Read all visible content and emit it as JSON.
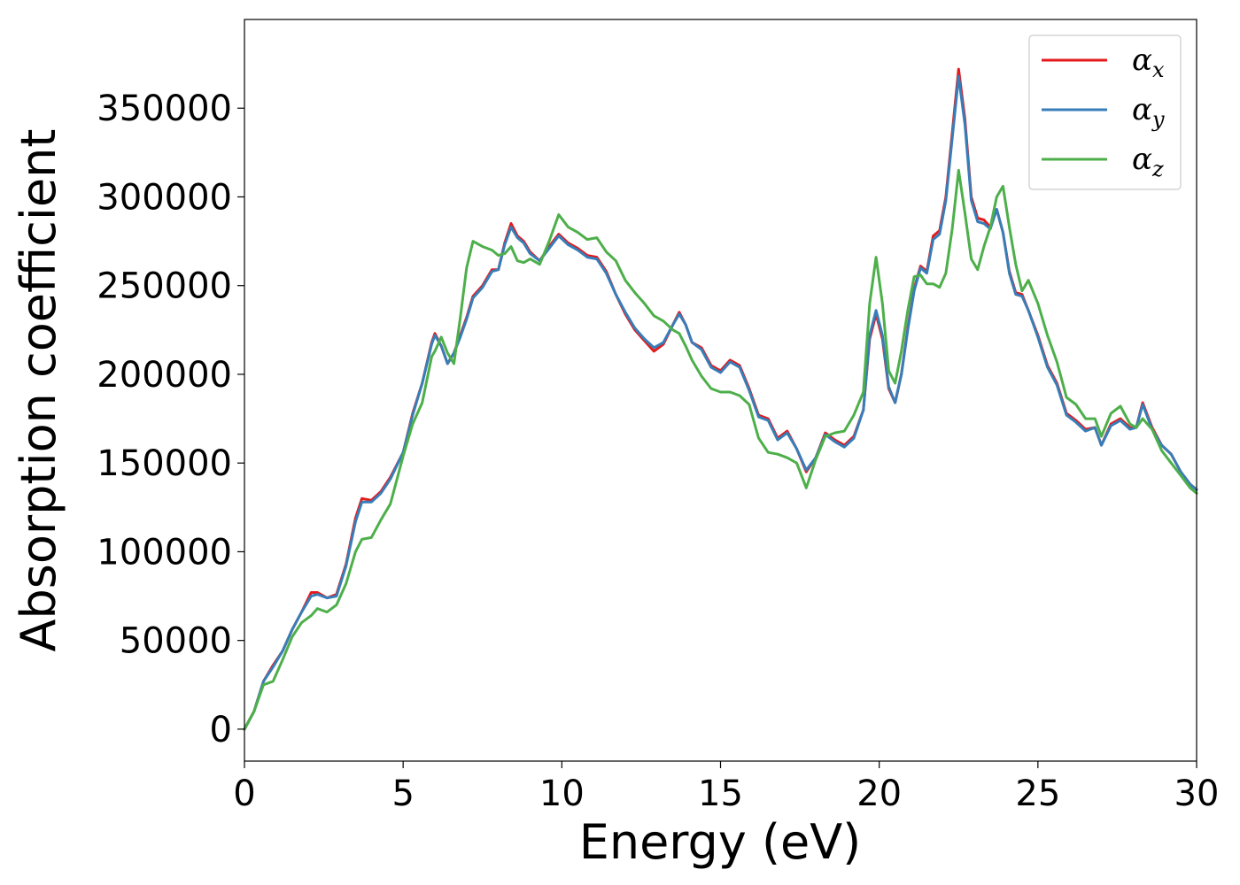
{
  "chart_data": {
    "type": "line",
    "xlabel": "Energy (eV)",
    "ylabel": "Absorption coefficient",
    "xlim": [
      0,
      30
    ],
    "ylim": [
      -18000,
      400000
    ],
    "xticks": [
      0,
      5,
      10,
      15,
      20,
      25,
      30
    ],
    "xtick_labels": [
      "0",
      "5",
      "10",
      "15",
      "20",
      "25",
      "30"
    ],
    "yticks": [
      0,
      50000,
      100000,
      150000,
      200000,
      250000,
      300000,
      350000
    ],
    "ytick_labels": [
      "0",
      "50000",
      "100000",
      "150000",
      "200000",
      "250000",
      "300000",
      "350000"
    ],
    "grid": false,
    "legend_position": "top-right",
    "series": [
      {
        "name": "α_x",
        "legend_base": "α",
        "legend_sub": "x",
        "color": "#e41a1c",
        "x": [
          0,
          0.3,
          0.6,
          0.9,
          1.2,
          1.5,
          1.8,
          2.1,
          2.3,
          2.6,
          2.9,
          3.2,
          3.5,
          3.7,
          4.0,
          4.3,
          4.6,
          5.0,
          5.3,
          5.6,
          5.9,
          6.0,
          6.2,
          6.4,
          6.6,
          6.8,
          7.0,
          7.2,
          7.5,
          7.8,
          8.0,
          8.2,
          8.4,
          8.6,
          8.8,
          9.0,
          9.3,
          9.6,
          9.9,
          10.2,
          10.5,
          10.8,
          11.1,
          11.4,
          11.7,
          12.0,
          12.3,
          12.6,
          12.9,
          13.2,
          13.5,
          13.7,
          13.9,
          14.1,
          14.4,
          14.7,
          15.0,
          15.3,
          15.6,
          15.9,
          16.2,
          16.5,
          16.8,
          17.1,
          17.4,
          17.7,
          18.0,
          18.3,
          18.6,
          18.9,
          19.2,
          19.5,
          19.7,
          19.9,
          20.1,
          20.3,
          20.5,
          20.7,
          20.9,
          21.1,
          21.3,
          21.5,
          21.7,
          21.9,
          22.1,
          22.3,
          22.5,
          22.7,
          22.9,
          23.1,
          23.3,
          23.5,
          23.7,
          23.9,
          24.1,
          24.3,
          24.5,
          24.7,
          25.0,
          25.3,
          25.6,
          25.9,
          26.2,
          26.5,
          26.8,
          27.0,
          27.3,
          27.6,
          27.9,
          28.1,
          28.3,
          28.6,
          28.9,
          29.2,
          29.5,
          29.8,
          30.0
        ],
        "y": [
          0,
          10000,
          27000,
          36000,
          44000,
          56000,
          66000,
          77000,
          77000,
          74000,
          76000,
          93000,
          119000,
          130000,
          129000,
          134000,
          142000,
          156000,
          178000,
          195000,
          218000,
          223000,
          216000,
          206000,
          212000,
          222000,
          232000,
          244000,
          250000,
          259000,
          259000,
          274000,
          285000,
          278000,
          275000,
          269000,
          264000,
          272000,
          279000,
          274000,
          271000,
          267000,
          266000,
          258000,
          245000,
          234000,
          225000,
          219000,
          213000,
          217000,
          228000,
          235000,
          228000,
          218000,
          215000,
          205000,
          202000,
          208000,
          205000,
          192000,
          177000,
          175000,
          164000,
          168000,
          158000,
          145000,
          153000,
          167000,
          163000,
          160000,
          165000,
          180000,
          220000,
          234000,
          220000,
          192000,
          184000,
          200000,
          226000,
          248000,
          261000,
          258000,
          278000,
          281000,
          300000,
          336000,
          372000,
          344000,
          300000,
          288000,
          287000,
          283000,
          293000,
          280000,
          258000,
          246000,
          245000,
          236000,
          222000,
          205000,
          195000,
          178000,
          174000,
          169000,
          170000,
          160000,
          172000,
          175000,
          170000,
          170000,
          184000,
          170000,
          160000,
          155000,
          145000,
          138000,
          135000
        ],
        "line_width": 3
      },
      {
        "name": "α_y",
        "legend_base": "α",
        "legend_sub": "y",
        "color": "#377eb8",
        "x": [
          0,
          0.3,
          0.6,
          0.9,
          1.2,
          1.5,
          1.8,
          2.1,
          2.3,
          2.6,
          2.9,
          3.2,
          3.5,
          3.7,
          4.0,
          4.3,
          4.6,
          5.0,
          5.3,
          5.6,
          5.9,
          6.0,
          6.2,
          6.4,
          6.6,
          6.8,
          7.0,
          7.2,
          7.5,
          7.8,
          8.0,
          8.2,
          8.4,
          8.6,
          8.8,
          9.0,
          9.3,
          9.6,
          9.9,
          10.2,
          10.5,
          10.8,
          11.1,
          11.4,
          11.7,
          12.0,
          12.3,
          12.6,
          12.9,
          13.2,
          13.5,
          13.7,
          13.9,
          14.1,
          14.4,
          14.7,
          15.0,
          15.3,
          15.6,
          15.9,
          16.2,
          16.5,
          16.8,
          17.1,
          17.4,
          17.7,
          18.0,
          18.3,
          18.6,
          18.9,
          19.2,
          19.5,
          19.7,
          19.9,
          20.1,
          20.3,
          20.5,
          20.7,
          20.9,
          21.1,
          21.3,
          21.5,
          21.7,
          21.9,
          22.1,
          22.3,
          22.5,
          22.7,
          22.9,
          23.1,
          23.3,
          23.5,
          23.7,
          23.9,
          24.1,
          24.3,
          24.5,
          24.7,
          25.0,
          25.3,
          25.6,
          25.9,
          26.2,
          26.5,
          26.8,
          27.0,
          27.3,
          27.6,
          27.9,
          28.1,
          28.3,
          28.6,
          28.9,
          29.2,
          29.5,
          29.8,
          30.0
        ],
        "y": [
          0,
          10000,
          27000,
          35000,
          44000,
          56000,
          66000,
          75000,
          76000,
          74000,
          75000,
          92000,
          117000,
          128000,
          128000,
          133000,
          141000,
          156000,
          177000,
          195000,
          217000,
          222000,
          216000,
          206000,
          212000,
          221000,
          231000,
          243000,
          249000,
          258000,
          259000,
          273000,
          283000,
          277000,
          274000,
          268000,
          264000,
          271000,
          278000,
          273000,
          270000,
          266000,
          265000,
          257000,
          245000,
          235000,
          226000,
          220000,
          215000,
          218000,
          228000,
          234000,
          228000,
          218000,
          214000,
          204000,
          201000,
          207000,
          204000,
          191000,
          176000,
          174000,
          163000,
          167000,
          158000,
          146000,
          153000,
          166000,
          162000,
          159000,
          164000,
          180000,
          222000,
          236000,
          222000,
          193000,
          184000,
          200000,
          225000,
          247000,
          260000,
          257000,
          276000,
          279000,
          298000,
          333000,
          368000,
          341000,
          298000,
          286000,
          285000,
          282000,
          293000,
          280000,
          257000,
          245000,
          244000,
          236000,
          221000,
          204000,
          194000,
          177000,
          173000,
          168000,
          170000,
          160000,
          171000,
          174000,
          169000,
          170000,
          183000,
          169000,
          160000,
          155000,
          145000,
          138000,
          135000
        ],
        "line_width": 3
      },
      {
        "name": "α_z",
        "legend_base": "α",
        "legend_sub": "z",
        "color": "#4daf4a",
        "x": [
          0,
          0.3,
          0.6,
          0.9,
          1.2,
          1.5,
          1.8,
          2.1,
          2.3,
          2.6,
          2.9,
          3.2,
          3.5,
          3.7,
          4.0,
          4.3,
          4.6,
          5.0,
          5.3,
          5.6,
          5.9,
          6.0,
          6.2,
          6.4,
          6.6,
          6.8,
          7.0,
          7.2,
          7.5,
          7.8,
          8.0,
          8.2,
          8.4,
          8.6,
          8.8,
          9.0,
          9.3,
          9.6,
          9.9,
          10.2,
          10.5,
          10.8,
          11.1,
          11.4,
          11.7,
          12.0,
          12.3,
          12.6,
          12.9,
          13.2,
          13.5,
          13.7,
          13.9,
          14.1,
          14.4,
          14.7,
          15.0,
          15.3,
          15.6,
          15.9,
          16.2,
          16.5,
          16.8,
          17.1,
          17.4,
          17.7,
          18.0,
          18.3,
          18.6,
          18.9,
          19.2,
          19.5,
          19.7,
          19.9,
          20.1,
          20.3,
          20.5,
          20.7,
          20.9,
          21.1,
          21.3,
          21.5,
          21.7,
          21.9,
          22.1,
          22.3,
          22.5,
          22.7,
          22.9,
          23.1,
          23.3,
          23.5,
          23.7,
          23.9,
          24.1,
          24.3,
          24.5,
          24.7,
          25.0,
          25.3,
          25.6,
          25.9,
          26.2,
          26.5,
          26.8,
          27.0,
          27.3,
          27.6,
          27.9,
          28.1,
          28.3,
          28.6,
          28.9,
          29.2,
          29.5,
          29.8,
          30.0
        ],
        "y": [
          0,
          10000,
          25000,
          27000,
          39000,
          52000,
          60000,
          64000,
          68000,
          66000,
          70000,
          82000,
          100000,
          107000,
          108000,
          118000,
          127000,
          154000,
          172000,
          184000,
          210000,
          213000,
          221000,
          212000,
          206000,
          232000,
          260000,
          275000,
          272000,
          270000,
          267000,
          268000,
          272000,
          264000,
          263000,
          265000,
          262000,
          275000,
          290000,
          283000,
          280000,
          276000,
          277000,
          269000,
          264000,
          253000,
          246000,
          240000,
          233000,
          230000,
          225000,
          223000,
          216000,
          208000,
          199000,
          192000,
          190000,
          190000,
          188000,
          183000,
          164000,
          156000,
          155000,
          153000,
          150000,
          136000,
          152000,
          165000,
          167000,
          168000,
          177000,
          190000,
          240000,
          266000,
          240000,
          202000,
          195000,
          213000,
          236000,
          255000,
          256000,
          251000,
          251000,
          249000,
          257000,
          282000,
          315000,
          291000,
          265000,
          259000,
          272000,
          283000,
          300000,
          306000,
          283000,
          262000,
          247000,
          253000,
          240000,
          222000,
          207000,
          187000,
          183000,
          175000,
          175000,
          165000,
          178000,
          182000,
          172000,
          170000,
          175000,
          169000,
          157000,
          150000,
          143000,
          136000,
          133000
        ],
        "line_width": 3
      }
    ]
  }
}
